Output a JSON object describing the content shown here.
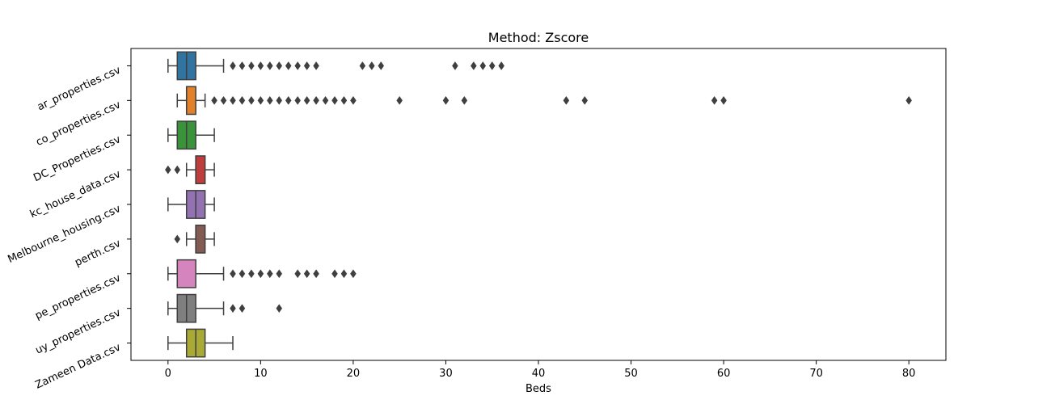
{
  "chart_data": {
    "type": "box",
    "orientation": "horizontal",
    "title": "Method: Zscore",
    "xlabel": "Beds",
    "ylabel": "",
    "xlim": [
      -4,
      84
    ],
    "xticks": [
      0,
      10,
      20,
      30,
      40,
      50,
      60,
      70,
      80
    ],
    "grid": false,
    "series": [
      {
        "name": "ar_properties.csv",
        "color": "#3274a1",
        "min": 0,
        "q1": 1,
        "median": 2,
        "q3": 3,
        "max": 6,
        "outliers": [
          7,
          8,
          9,
          10,
          11,
          12,
          13,
          14,
          15,
          16,
          21,
          22,
          23,
          31,
          33,
          34,
          35,
          36
        ]
      },
      {
        "name": "co_properties.csv",
        "color": "#e1812c",
        "min": 1,
        "q1": 2,
        "median": 2,
        "q3": 3,
        "max": 4,
        "outliers": [
          5,
          6,
          7,
          8,
          9,
          10,
          11,
          12,
          13,
          14,
          15,
          16,
          17,
          18,
          19,
          20,
          25,
          30,
          32,
          43,
          45,
          59,
          60,
          80
        ]
      },
      {
        "name": "DC_Properties.csv",
        "color": "#3a923a",
        "min": 0,
        "q1": 1,
        "median": 2,
        "q3": 3,
        "max": 5,
        "outliers": []
      },
      {
        "name": "kc_house_data.csv",
        "color": "#c03d3e",
        "min": 2,
        "q1": 3,
        "median": 3,
        "q3": 4,
        "max": 5,
        "outliers": [
          0,
          1
        ]
      },
      {
        "name": "Melbourne_housing.csv",
        "color": "#9372b2",
        "min": 0,
        "q1": 2,
        "median": 3,
        "q3": 4,
        "max": 5,
        "outliers": []
      },
      {
        "name": "perth.csv",
        "color": "#845b53",
        "min": 2,
        "q1": 3,
        "median": 3,
        "q3": 4,
        "max": 5,
        "outliers": [
          1
        ]
      },
      {
        "name": "pe_properties.csv",
        "color": "#d684bd",
        "min": 0,
        "q1": 1,
        "median": 1,
        "q3": 3,
        "max": 6,
        "outliers": [
          7,
          8,
          9,
          10,
          11,
          12,
          14,
          15,
          16,
          18,
          19,
          20
        ]
      },
      {
        "name": "uy_properties.csv",
        "color": "#7f7f7f",
        "min": 0,
        "q1": 1,
        "median": 2,
        "q3": 3,
        "max": 6,
        "outliers": [
          7,
          8,
          12
        ]
      },
      {
        "name": "Zameen Data.csv",
        "color": "#a9aa35",
        "min": 0,
        "q1": 2,
        "median": 3,
        "q3": 4,
        "max": 7,
        "outliers": []
      }
    ]
  }
}
